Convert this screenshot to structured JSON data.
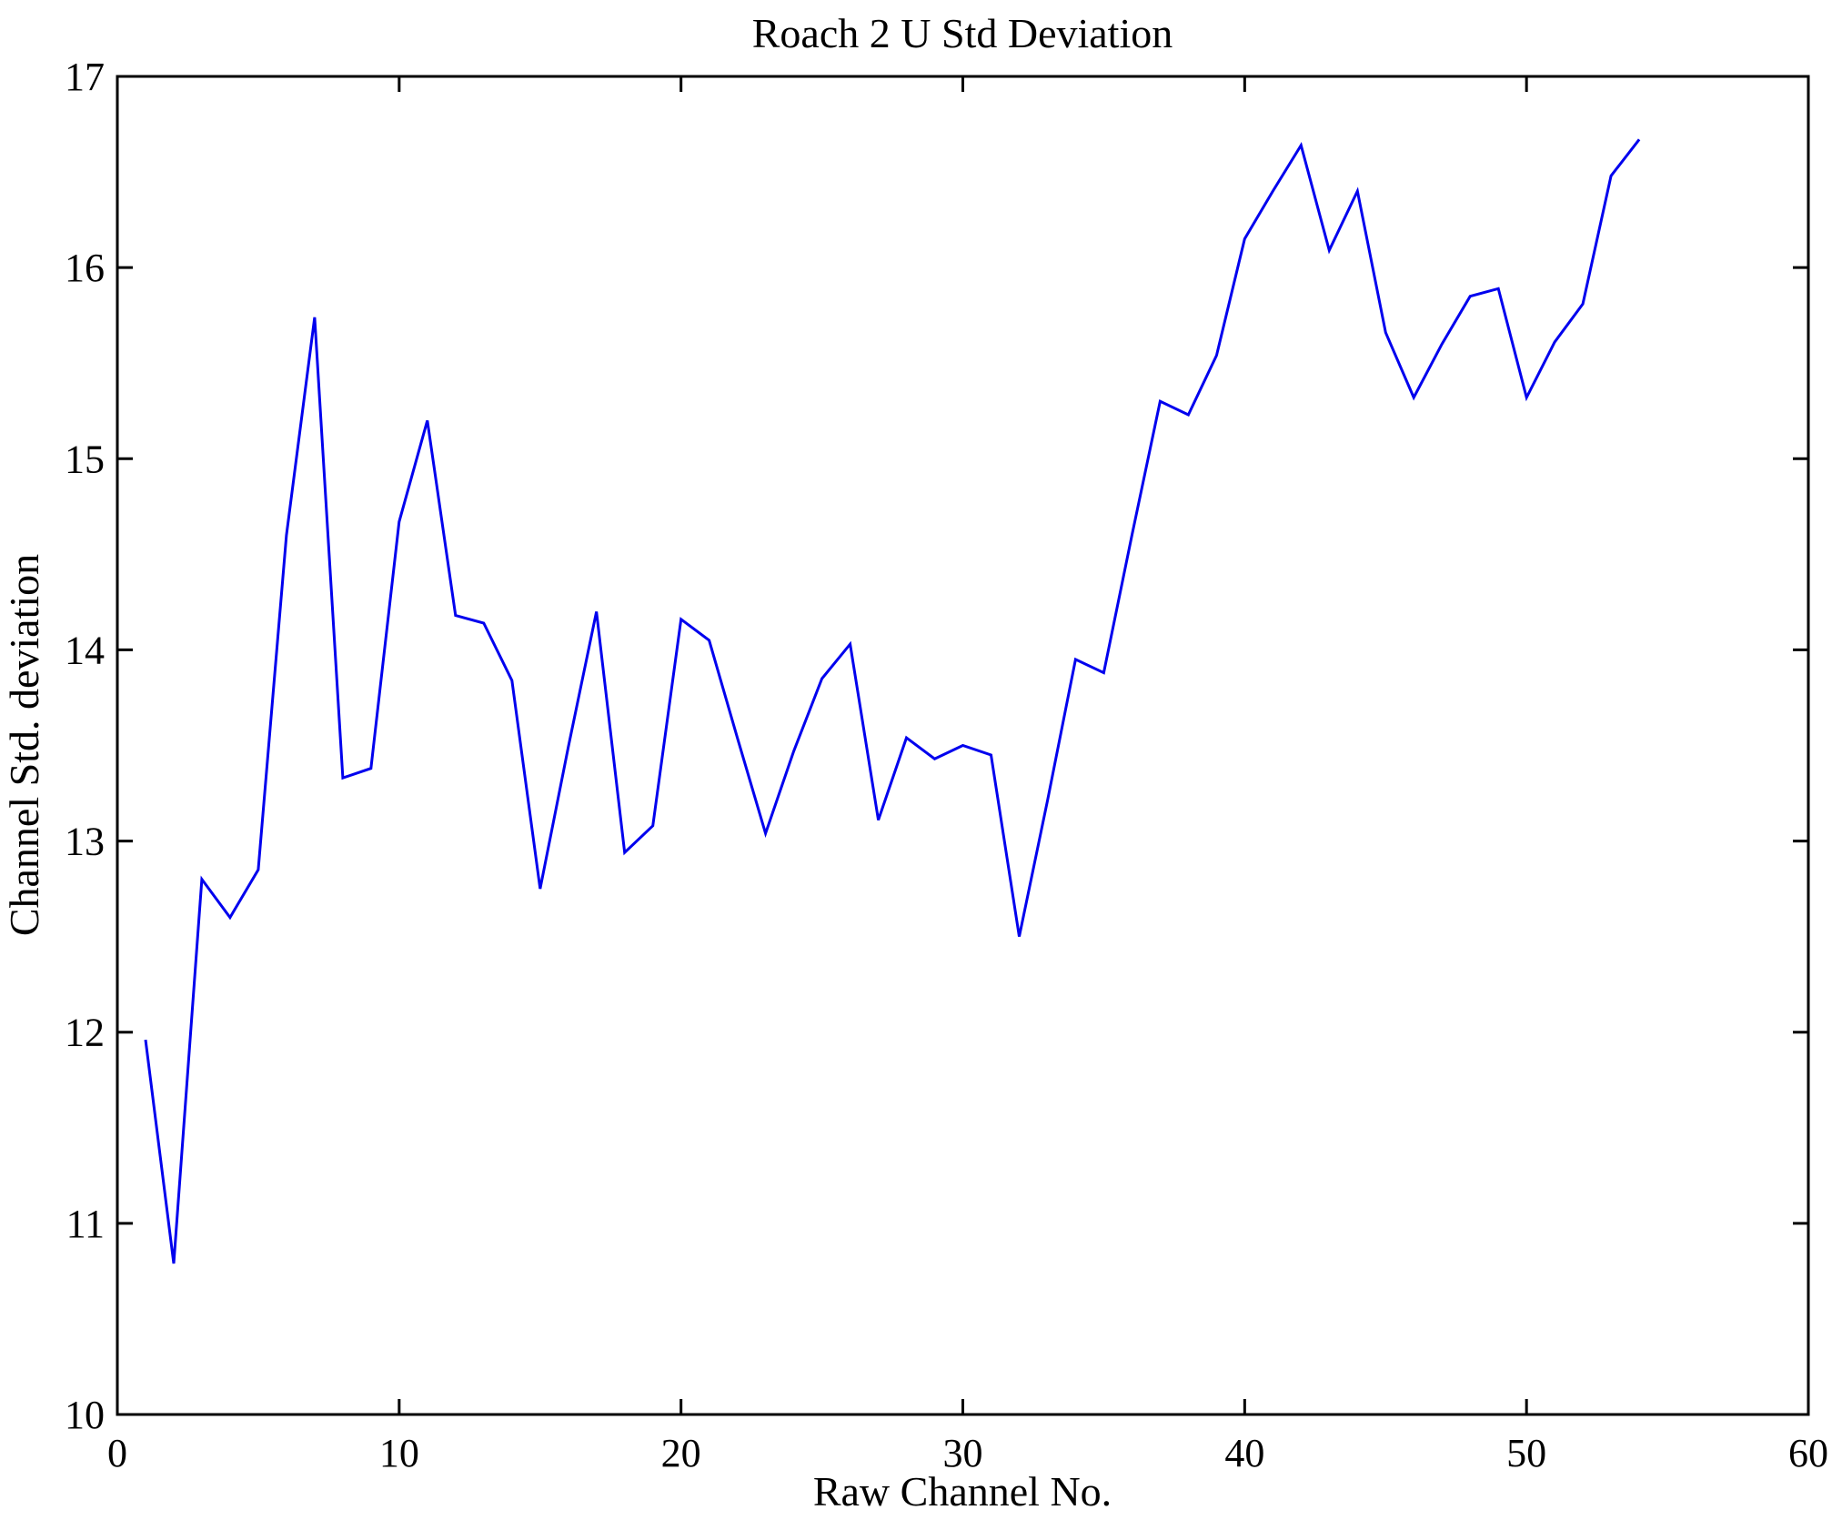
{
  "figure": {
    "background": "#ffffff"
  },
  "chart_data": {
    "type": "line",
    "title": "Roach 2 U Std Deviation",
    "xlabel": "Raw Channel No.",
    "ylabel": "Channel Std. deviation",
    "xlim": [
      0,
      60
    ],
    "ylim": [
      10,
      17
    ],
    "x_ticks": [
      0,
      10,
      20,
      30,
      40,
      50,
      60
    ],
    "y_ticks": [
      10,
      11,
      12,
      13,
      14,
      15,
      16,
      17
    ],
    "grid": false,
    "legend": null,
    "line_color": "#0000ee",
    "axis_color": "#000000",
    "x": [
      1,
      2,
      3,
      4,
      5,
      6,
      7,
      8,
      9,
      10,
      11,
      12,
      13,
      14,
      15,
      16,
      17,
      18,
      19,
      20,
      21,
      22,
      23,
      24,
      25,
      26,
      27,
      28,
      29,
      30,
      31,
      32,
      33,
      34,
      35,
      36,
      37,
      38,
      39,
      40,
      41,
      42,
      43,
      44,
      45,
      46,
      47,
      48,
      49,
      50,
      51,
      52,
      53,
      54
    ],
    "series": [
      {
        "name": "Channel Std. deviation",
        "values": [
          11.96,
          10.79,
          12.8,
          12.6,
          12.85,
          14.6,
          15.74,
          13.33,
          13.38,
          14.67,
          15.2,
          14.18,
          14.14,
          13.84,
          12.75,
          13.49,
          14.2,
          12.94,
          13.08,
          14.16,
          14.05,
          13.54,
          13.04,
          13.47,
          13.85,
          14.03,
          13.11,
          13.54,
          13.43,
          13.5,
          13.45,
          12.5,
          13.21,
          13.95,
          13.88,
          14.6,
          15.3,
          15.23,
          15.54,
          16.15,
          16.4,
          16.64,
          16.09,
          16.4,
          15.66,
          15.32,
          15.6,
          15.85,
          15.89,
          15.32,
          15.61,
          15.81,
          16.48,
          16.67
        ]
      }
    ]
  }
}
